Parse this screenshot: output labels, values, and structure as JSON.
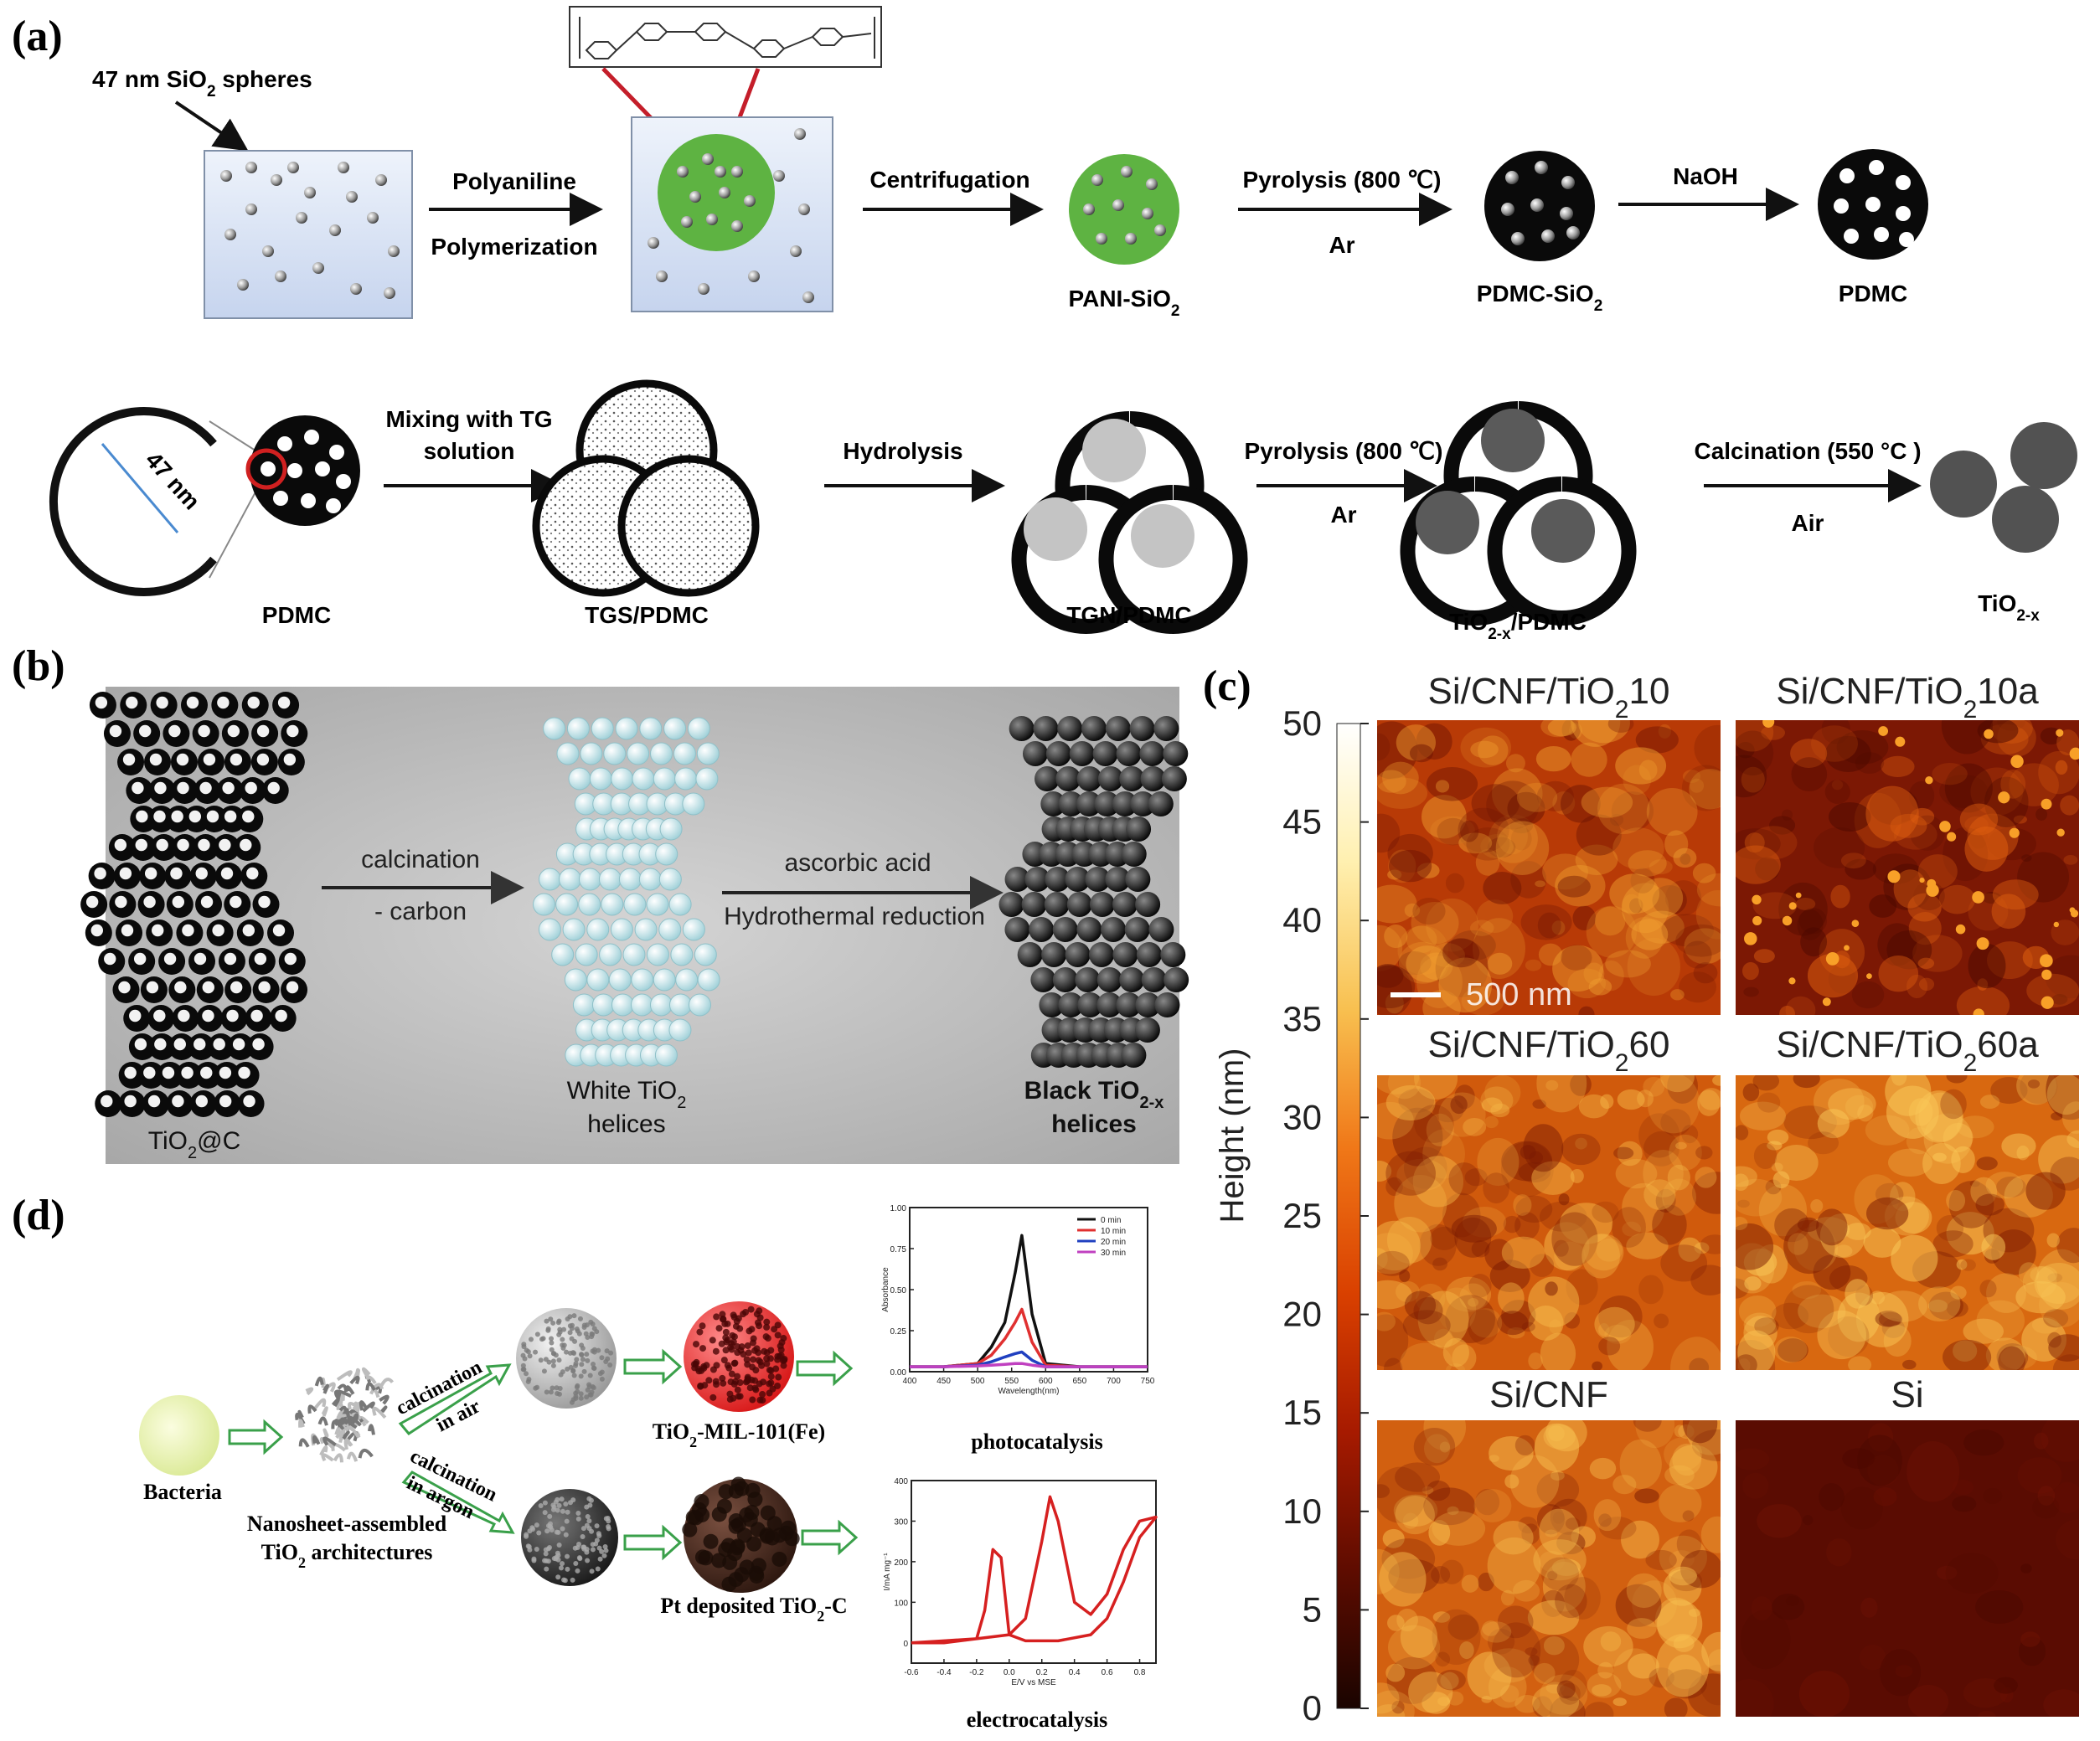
{
  "panels": {
    "a": {
      "label": "(a)",
      "row1": {
        "sphere_caption": "47 nm SiO",
        "sphere_caption_sub": "2",
        "sphere_caption_tail": " spheres",
        "step1_top": "Polyaniline",
        "step1_bottom": "Polymerization",
        "step2_top": "Centrifugation",
        "product1": "PANI-SiO",
        "product1_sub": "2",
        "step3_top": "Pyrolysis (800 ℃)",
        "step3_bottom": "Ar",
        "product2": "PDMC-SiO",
        "product2_sub": "2",
        "step4_top": "NaOH",
        "product3": "PDMC"
      },
      "row2": {
        "pore_size": "47 nm",
        "product0": "PDMC",
        "step1_top": "Mixing with TG",
        "step1_bottom": "solution",
        "product1": "TGS/PDMC",
        "step2_top": "Hydrolysis",
        "product2": "TGN/PDMC",
        "step3_top": "Pyrolysis (800 ℃)",
        "step3_bottom": "Ar",
        "product3": "TiO",
        "product3_sub": "2-x",
        "product3_tail": "/PDMC",
        "step4_top": "Calcination (550 °C )",
        "step4_bottom": "Air",
        "product4": "TiO",
        "product4_sub": "2-x"
      }
    },
    "b": {
      "label": "(b)",
      "start": "TiO",
      "start_sub": "2",
      "start_tail": "@C",
      "step1_top": "calcination",
      "step1_bottom": "- carbon",
      "middle_line1": "White TiO",
      "middle_line1_sub": "2",
      "middle_line2": "helices",
      "step2_top": "ascorbic acid",
      "step2_bottom": "Hydrothermal reduction",
      "end_line1": "Black TiO",
      "end_line1_sub": "2-x",
      "end_line2": "helices"
    },
    "c": {
      "label": "(c)",
      "colorbar": {
        "label": "Height (nm)",
        "ticks": [
          "0",
          "5",
          "10",
          "15",
          "20",
          "25",
          "30",
          "35",
          "40",
          "45",
          "50"
        ],
        "colors": [
          "#1a0400",
          "#5e0c00",
          "#a61a00",
          "#d94000",
          "#f07818",
          "#f8c050",
          "#fff0b0",
          "#ffffff"
        ]
      },
      "images": [
        {
          "title": "Si/CNF/TiO",
          "sub": "2",
          "tail": "10",
          "base": "#b83a06",
          "hi": "#f0a030",
          "lo": "#6a1202",
          "density": 0.5
        },
        {
          "title": "Si/CNF/TiO",
          "sub": "2",
          "tail": "10a",
          "base": "#7c1804",
          "hi": "#e06010",
          "lo": "#4a0800",
          "density": 0.35
        },
        {
          "title": "Si/CNF/TiO",
          "sub": "2",
          "tail": "60",
          "base": "#d05a0c",
          "hi": "#f6b848",
          "lo": "#7a1a02",
          "density": 0.55
        },
        {
          "title": "Si/CNF/TiO",
          "sub": "2",
          "tail": "60a",
          "base": "#d86810",
          "hi": "#fac858",
          "lo": "#7c1c02",
          "density": 0.55
        },
        {
          "title": "Si/CNF",
          "sub": "",
          "tail": "",
          "base": "#d26010",
          "hi": "#f8c050",
          "lo": "#7a1a02",
          "density": 0.55
        },
        {
          "title": "Si",
          "sub": "",
          "tail": "",
          "base": "#5a0c02",
          "hi": "#6e1204",
          "lo": "#4a0800",
          "density": 0.1
        }
      ],
      "scale_bar": "500 nm"
    },
    "d": {
      "label": "(d)",
      "start": "Bacteria",
      "nanosheet_line1": "Nanosheet-assembled",
      "nanosheet_line2": "TiO",
      "nanosheet_line2_sub": "2",
      "nanosheet_line2_tail": " architectures",
      "upper_arrow_top": "calcination",
      "upper_arrow_bottom": "in air",
      "lower_arrow_top": "calcination",
      "lower_arrow_bottom": "in argon",
      "upper_product": "TiO",
      "upper_product_sub": "2",
      "upper_product_tail": "-MIL-101(Fe)",
      "lower_product": "Pt deposited TiO",
      "lower_product_sub": "2",
      "lower_product_tail": "-C",
      "photo_caption": "photocatalysis",
      "electro_caption": "electrocatalysis"
    }
  },
  "chart_data": [
    {
      "type": "line",
      "ylabel": "Absorbance",
      "xlabel": "Wavelength(nm)",
      "xlim": [
        400,
        750
      ],
      "ylim": [
        0,
        1.0
      ],
      "x_ticks": [
        "400",
        "450",
        "500",
        "550",
        "600",
        "650",
        "700",
        "750"
      ],
      "y_ticks": [
        "0.00",
        "0.25",
        "0.50",
        "0.75",
        "1.00"
      ],
      "legend_position": "top-right",
      "series": [
        {
          "name": "0 min",
          "color": "#111111",
          "x": [
            400,
            450,
            500,
            520,
            540,
            555,
            565,
            580,
            600,
            650,
            700,
            750
          ],
          "y": [
            0.03,
            0.03,
            0.05,
            0.15,
            0.3,
            0.6,
            0.83,
            0.35,
            0.05,
            0.03,
            0.03,
            0.03
          ]
        },
        {
          "name": "10 min",
          "color": "#e03030",
          "x": [
            400,
            450,
            500,
            520,
            540,
            555,
            565,
            580,
            600,
            650,
            700,
            750
          ],
          "y": [
            0.03,
            0.03,
            0.05,
            0.1,
            0.2,
            0.3,
            0.38,
            0.18,
            0.04,
            0.03,
            0.03,
            0.03
          ]
        },
        {
          "name": "20 min",
          "color": "#2040c0",
          "x": [
            400,
            450,
            500,
            520,
            540,
            555,
            565,
            580,
            600,
            650,
            700,
            750
          ],
          "y": [
            0.03,
            0.03,
            0.04,
            0.06,
            0.09,
            0.11,
            0.12,
            0.07,
            0.03,
            0.03,
            0.03,
            0.03
          ]
        },
        {
          "name": "30 min",
          "color": "#c040c0",
          "x": [
            400,
            450,
            500,
            520,
            540,
            555,
            565,
            580,
            600,
            650,
            700,
            750
          ],
          "y": [
            0.03,
            0.03,
            0.035,
            0.04,
            0.045,
            0.05,
            0.05,
            0.04,
            0.03,
            0.03,
            0.03,
            0.03
          ]
        }
      ]
    },
    {
      "type": "line",
      "ylabel": "I/mA mg⁻¹",
      "xlabel": "E/V vs MSE",
      "xlim": [
        -0.6,
        0.9
      ],
      "ylim": [
        -50,
        400
      ],
      "x_ticks": [
        "-0.6",
        "-0.4",
        "-0.2",
        "0.0",
        "0.2",
        "0.4",
        "0.6",
        "0.8"
      ],
      "y_ticks": [
        "0",
        "100",
        "200",
        "300",
        "400"
      ],
      "series": [
        {
          "name": "",
          "color": "#d62020",
          "x": [
            -0.6,
            -0.4,
            -0.2,
            0.0,
            0.1,
            0.2,
            0.25,
            0.3,
            0.4,
            0.5,
            0.6,
            0.7,
            0.8,
            0.9,
            0.9,
            0.8,
            0.7,
            0.6,
            0.5,
            0.3,
            0.1,
            0.0,
            -0.05,
            -0.1,
            -0.15,
            -0.2,
            -0.4,
            -0.6
          ],
          "y": [
            0,
            5,
            10,
            20,
            60,
            250,
            360,
            300,
            100,
            70,
            120,
            230,
            300,
            310,
            310,
            260,
            150,
            60,
            20,
            5,
            5,
            20,
            210,
            230,
            80,
            10,
            0,
            0
          ]
        }
      ]
    }
  ]
}
